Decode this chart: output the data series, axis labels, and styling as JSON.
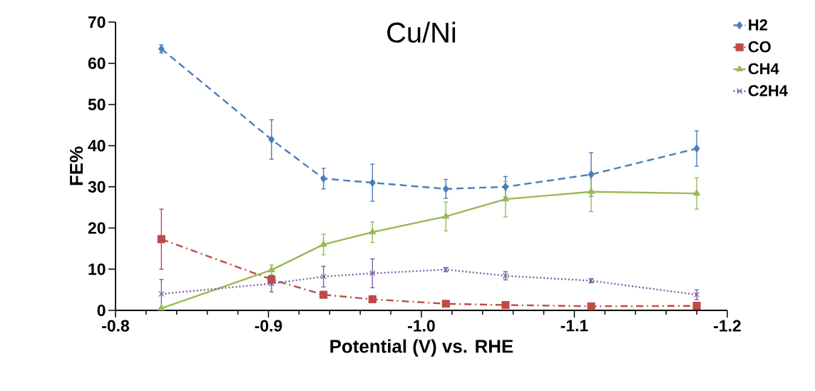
{
  "chart_data": {
    "type": "line",
    "title": "Cu/Ni",
    "xlabel": "Potential (V) vs. RHE",
    "ylabel": "FE%",
    "x": [
      -0.83,
      -0.902,
      -0.936,
      -0.968,
      -1.016,
      -1.055,
      -1.111,
      -1.18
    ],
    "series": [
      {
        "name": "H2",
        "color": "#4a7ebb",
        "marker": "diamond",
        "line_style": "dashed",
        "values": [
          63.5,
          41.5,
          32,
          31,
          29.5,
          30,
          33,
          39.3
        ],
        "errors": [
          1,
          4.8,
          2.5,
          4.5,
          2.3,
          2.5,
          5.3,
          4.3
        ]
      },
      {
        "name": "CO",
        "color": "#be4b48",
        "marker": "square",
        "line_style": "dashdot",
        "values": [
          17.3,
          7.5,
          3.8,
          2.7,
          1.6,
          1.3,
          1,
          1.1
        ],
        "errors": [
          7.3,
          1,
          0.5,
          null,
          null,
          null,
          null,
          null
        ]
      },
      {
        "name": "CH4",
        "color": "#98b954",
        "marker": "triangle",
        "line_style": "solid",
        "values": [
          0.5,
          9.8,
          16,
          19,
          22.8,
          27,
          28.8,
          28.4
        ],
        "errors": [
          null,
          1.2,
          2.5,
          2.5,
          3.5,
          4.3,
          4.8,
          3.8
        ]
      },
      {
        "name": "C2H4",
        "color": "#7d60a0",
        "marker": "cross",
        "line_style": "dotted",
        "values": [
          4,
          6.5,
          8.2,
          9,
          9.9,
          8.4,
          7.2,
          3.8
        ],
        "errors": [
          3.5,
          2,
          2.5,
          3.5,
          0.5,
          1,
          0.5,
          1.2
        ]
      }
    ],
    "xlim": [
      -0.8,
      -1.2
    ],
    "xticks": [
      {
        "value": -0.8,
        "label": "-0.8"
      },
      {
        "value": -0.9,
        "label": "-0.9"
      },
      {
        "value": -1.0,
        "label": "-1.0"
      },
      {
        "value": -1.1,
        "label": "-1.1"
      },
      {
        "value": -1.2,
        "label": "-1.2"
      }
    ],
    "ylim": [
      0,
      70
    ],
    "yticks": [
      0,
      10,
      20,
      30,
      40,
      50,
      60,
      70
    ],
    "grid": false,
    "legend": "right"
  }
}
